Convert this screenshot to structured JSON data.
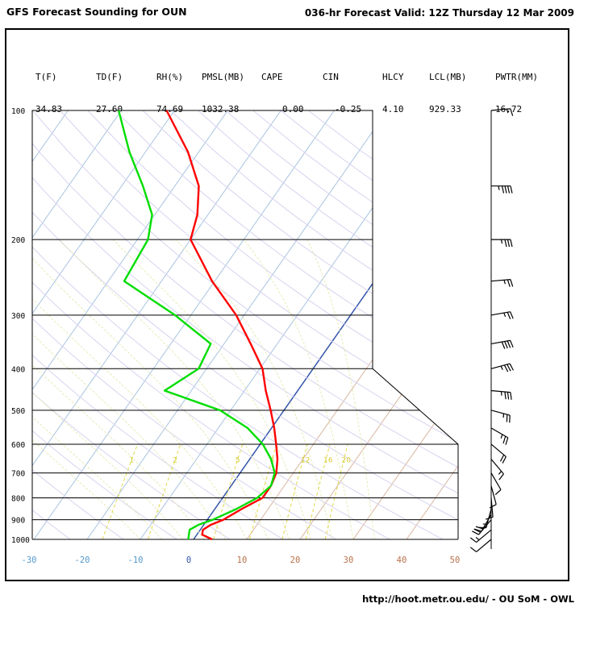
{
  "header": {
    "title": "GFS Forecast Sounding for OUN",
    "valid": "036-hr Forecast Valid: 12Z Thursday 12 Mar 2009"
  },
  "params": [
    {
      "label": "T(F)",
      "value": "34.83"
    },
    {
      "label": "TD(F)",
      "value": "27.60"
    },
    {
      "label": "RH(%)",
      "value": "74.69"
    },
    {
      "label": "PMSL(MB)",
      "value": "1032.38"
    },
    {
      "label": "CAPE",
      "value": "0.00"
    },
    {
      "label": "CIN",
      "value": "-0.25"
    },
    {
      "label": "HLCY",
      "value": "4.10"
    },
    {
      "label": "LCL(MB)",
      "value": "929.33"
    },
    {
      "label": "PWTR(MM)",
      "value": "16.72"
    }
  ],
  "footer": "http://hoot.metr.ou.edu/ - OU SoM - OWL",
  "chart_data": {
    "type": "line",
    "subtype": "skew-T log-P sounding",
    "y_axis": {
      "quantity": "pressure (mb)",
      "scale": "log",
      "range": [
        1000,
        100
      ],
      "ticks": [
        100,
        200,
        300,
        400,
        500,
        600,
        700,
        800,
        900,
        1000
      ],
      "tick_labels": [
        "100",
        "200",
        "300",
        "400",
        "500",
        "600",
        "700",
        "800",
        "900",
        "1000"
      ]
    },
    "x_axis": {
      "quantity": "temperature (C)",
      "range": [
        -30,
        50
      ],
      "ticks": [
        -30,
        -20,
        -10,
        0,
        10,
        20,
        30,
        40,
        50
      ],
      "tick_labels": [
        "-30",
        "-20",
        "-10",
        "0",
        "10",
        "20",
        "30",
        "40",
        "50"
      ]
    },
    "mixing_ratio_labels": [
      "1",
      "2",
      "5",
      "8",
      "12",
      "16",
      "20"
    ],
    "series": [
      {
        "color": "#ff0000",
        "points": [
          [
            1000,
            3.5
          ],
          [
            975,
            1.0
          ],
          [
            950,
            0.5
          ],
          [
            925,
            1.3
          ],
          [
            900,
            3.0
          ],
          [
            850,
            5.0
          ],
          [
            800,
            7.5
          ],
          [
            750,
            7.5
          ],
          [
            700,
            6.8
          ],
          [
            650,
            5.2
          ],
          [
            600,
            3.0
          ],
          [
            550,
            0.5
          ],
          [
            500,
            -2.5
          ],
          [
            450,
            -6.0
          ],
          [
            400,
            -9.5
          ],
          [
            350,
            -15.0
          ],
          [
            300,
            -21.5
          ],
          [
            250,
            -30.5
          ],
          [
            200,
            -40.0
          ],
          [
            175,
            -42.0
          ],
          [
            150,
            -45.5
          ],
          [
            125,
            -52.0
          ],
          [
            100,
            -61.5
          ]
        ]
      },
      {
        "color": "#00dd00",
        "points": [
          [
            1000,
            -1.0
          ],
          [
            975,
            -1.5
          ],
          [
            950,
            -2.0
          ],
          [
            925,
            -1.0
          ],
          [
            900,
            1.0
          ],
          [
            850,
            4.0
          ],
          [
            800,
            6.5
          ],
          [
            750,
            7.5
          ],
          [
            700,
            6.5
          ],
          [
            650,
            4.0
          ],
          [
            600,
            0.5
          ],
          [
            550,
            -4.5
          ],
          [
            500,
            -12.0
          ],
          [
            450,
            -25.0
          ],
          [
            400,
            -21.5
          ],
          [
            350,
            -22.5
          ],
          [
            300,
            -33.0
          ],
          [
            250,
            -47.0
          ],
          [
            200,
            -48.0
          ],
          [
            175,
            -50.5
          ],
          [
            150,
            -56.0
          ],
          [
            125,
            -63.0
          ],
          [
            100,
            -70.5
          ]
        ]
      }
    ],
    "wind_barbs": [
      {
        "p": 100,
        "dir": 265,
        "speed": 15
      },
      {
        "p": 150,
        "dir": 270,
        "speed": 45
      },
      {
        "p": 200,
        "dir": 270,
        "speed": 35
      },
      {
        "p": 250,
        "dir": 265,
        "speed": 25
      },
      {
        "p": 300,
        "dir": 260,
        "speed": 25
      },
      {
        "p": 350,
        "dir": 260,
        "speed": 40
      },
      {
        "p": 400,
        "dir": 255,
        "speed": 35
      },
      {
        "p": 450,
        "dir": 275,
        "speed": 35
      },
      {
        "p": 500,
        "dir": 285,
        "speed": 25
      },
      {
        "p": 550,
        "dir": 300,
        "speed": 25
      },
      {
        "p": 600,
        "dir": 310,
        "speed": 20
      },
      {
        "p": 650,
        "dir": 320,
        "speed": 15
      },
      {
        "p": 700,
        "dir": 330,
        "speed": 10
      },
      {
        "p": 750,
        "dir": 345,
        "speed": 10
      },
      {
        "p": 800,
        "dir": 355,
        "speed": 10
      },
      {
        "p": 850,
        "dir": 15,
        "speed": 15
      },
      {
        "p": 875,
        "dir": 30,
        "speed": 20
      },
      {
        "p": 900,
        "dir": 40,
        "speed": 20
      },
      {
        "p": 950,
        "dir": 50,
        "speed": 15
      },
      {
        "p": 1000,
        "dir": 50,
        "speed": 10
      }
    ]
  }
}
